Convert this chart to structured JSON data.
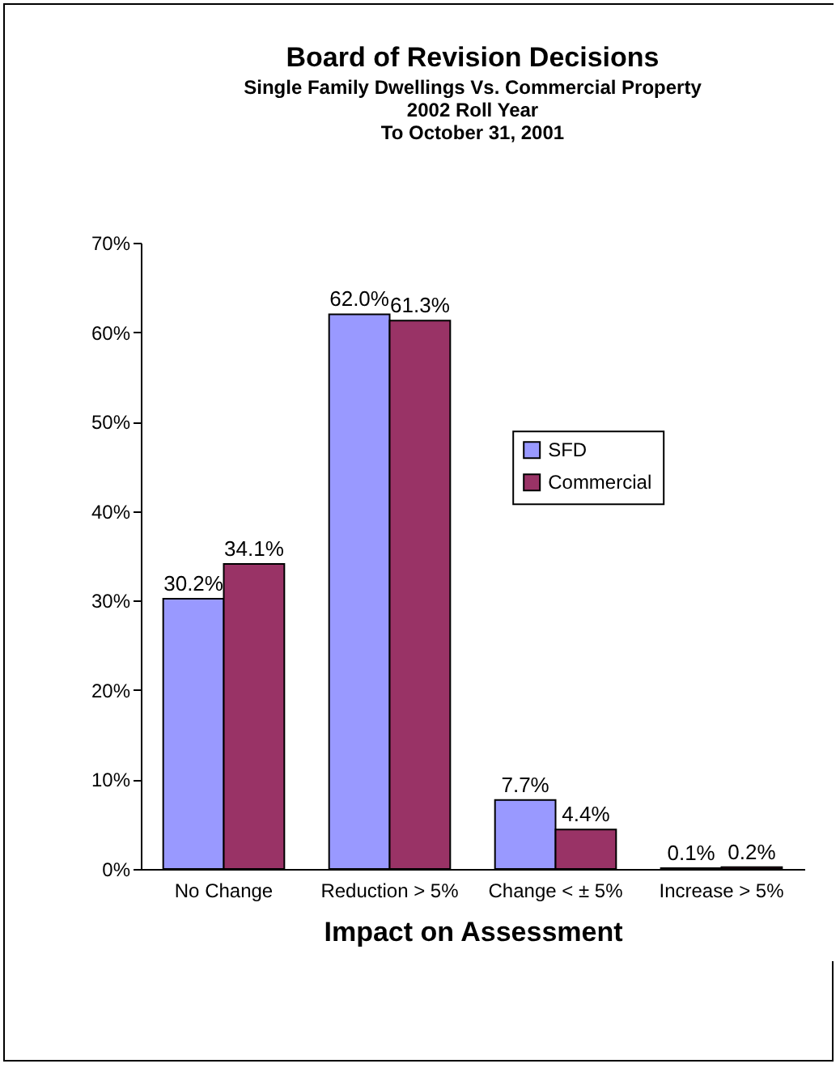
{
  "chart_data": {
    "type": "bar",
    "title": "Board of Revision Decisions",
    "subtitle": "Single Family Dwellings Vs. Commercial Property\n2002 Roll Year\nTo October 31, 2001",
    "xlabel": "Impact on Assessment",
    "categories": [
      "No Change",
      "Reduction > 5%",
      "Change < ± 5%",
      "Increase > 5%"
    ],
    "series": [
      {
        "name": "SFD",
        "color": "#9999ff",
        "values": [
          30.2,
          62.0,
          7.7,
          0.1
        ],
        "value_labels": [
          "30.2%",
          "62.0%",
          "7.7%",
          "0.1%"
        ]
      },
      {
        "name": "Commercial",
        "color": "#993366",
        "values": [
          34.1,
          61.3,
          4.4,
          0.2
        ],
        "value_labels": [
          "34.1%",
          "61.3%",
          "4.4%",
          "0.2%"
        ]
      }
    ],
    "ylim": [
      0,
      70
    ],
    "yticks": [
      {
        "value": 0,
        "label": "0%"
      },
      {
        "value": 10,
        "label": "10%"
      },
      {
        "value": 20,
        "label": "20%"
      },
      {
        "value": 30,
        "label": "30%"
      },
      {
        "value": 40,
        "label": "40%"
      },
      {
        "value": 50,
        "label": "50%"
      },
      {
        "value": 60,
        "label": "60%"
      },
      {
        "value": 70,
        "label": "70%"
      }
    ],
    "legend": "right",
    "grid": false
  }
}
